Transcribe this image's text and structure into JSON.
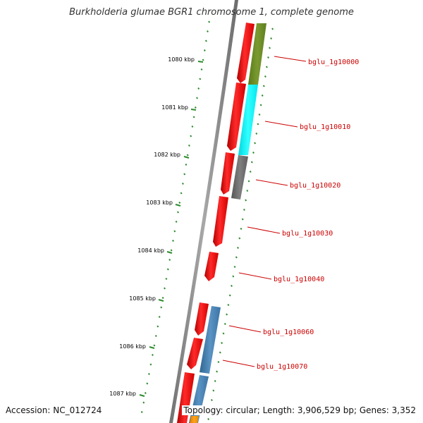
{
  "title": "Burkholderia glumae BGR1 chromosome 1, complete genome",
  "accession_text": "Accession: NC_012724",
  "topology_text": "Topology: circular; Length: 3,906,529 bp; Genes: 3,352",
  "scale_labels": [
    "1080 kbp",
    "1081 kbp",
    "1082 kbp",
    "1083 kbp",
    "1084 kbp",
    "1085 kbp",
    "1086 kbp",
    "1087 kbp"
  ],
  "gene_labels": [
    "bglu_1g10000",
    "bglu_1g10010",
    "bglu_1g10020",
    "bglu_1g10030",
    "bglu_1g10040",
    "bglu_1g10060",
    "bglu_1g10070"
  ],
  "colors": {
    "backbone": "#888888",
    "scale_ticks": "#2e8b2e",
    "gene_arrow": "#ff0000",
    "gene_label": "#cc0000",
    "cog_green": "#6b8e23",
    "cog_cyan": "#00ffff",
    "cog_gray": "#6e6e6e",
    "cog_blue": "#4682b4",
    "cog_orange": "#ff8c00"
  }
}
